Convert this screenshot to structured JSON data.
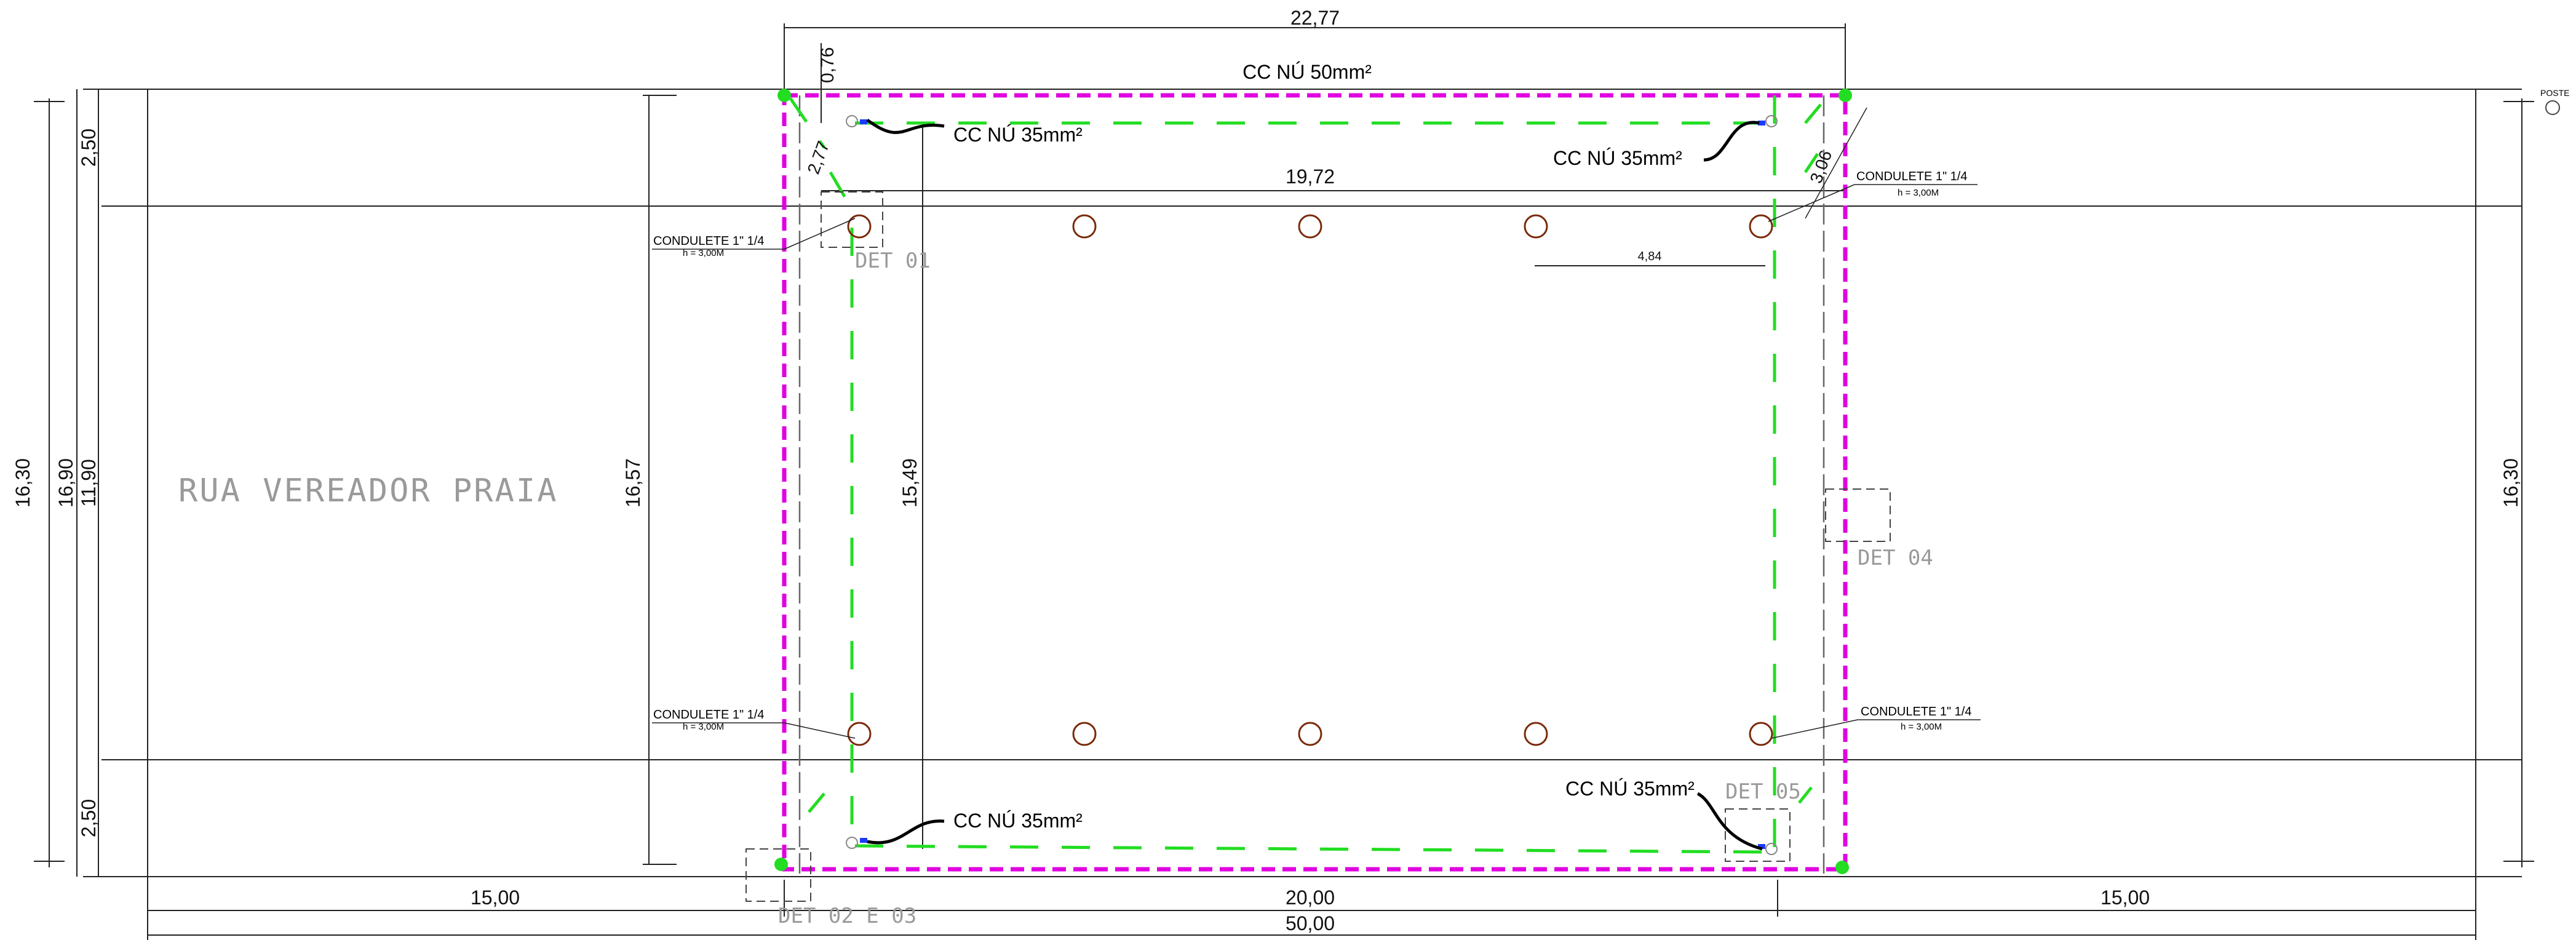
{
  "street_name": "RUA VEREADOR PRAIA",
  "dimensions": {
    "top_total": "22,77",
    "offset_076": "0,76",
    "side_250_top": "2,50",
    "side_250_bottom": "2,50",
    "side_1630_left": "16,30",
    "side_1690": "16,90",
    "side_1190": "11,90",
    "side_1630_right": "16,30",
    "inner_1657": "16,57",
    "inner_1549": "15,49",
    "inner_1972": "19,72",
    "inner_277": "2,77",
    "inner_306": "3,06",
    "pole_spacing": "4,84",
    "bottom_left": "15,00",
    "bottom_mid": "20,00",
    "bottom_right": "15,00",
    "bottom_total": "50,00"
  },
  "cables": {
    "main": "CC NÚ 50mm²",
    "c1": "CC NÚ 35mm²",
    "c2": "CC NÚ 35mm²",
    "c3": "CC NÚ 35mm²",
    "c4": "CC NÚ 35mm²"
  },
  "condulets": [
    {
      "label": "CONDULETE 1\" 1/4",
      "height": "h = 3,00M"
    },
    {
      "label": "CONDULETE 1\" 1/4",
      "height": "h = 3,00M"
    },
    {
      "label": "CONDULETE 1\" 1/4",
      "height": "h = 3,00M"
    },
    {
      "label": "CONDULETE 1\" 1/4",
      "height": "h = 3,00M"
    }
  ],
  "details": {
    "det01": "DET 01",
    "det04": "DET 04",
    "det05": "DET 05",
    "det0203": "DET 02 E 03"
  },
  "poste_label": "POSTE",
  "colors": {
    "grounding_ring": "#e000e0",
    "cable_green": "#22dd22",
    "lines": "#222222",
    "dashed_gray": "#666666",
    "pole_circle": "#7a2a0a"
  }
}
